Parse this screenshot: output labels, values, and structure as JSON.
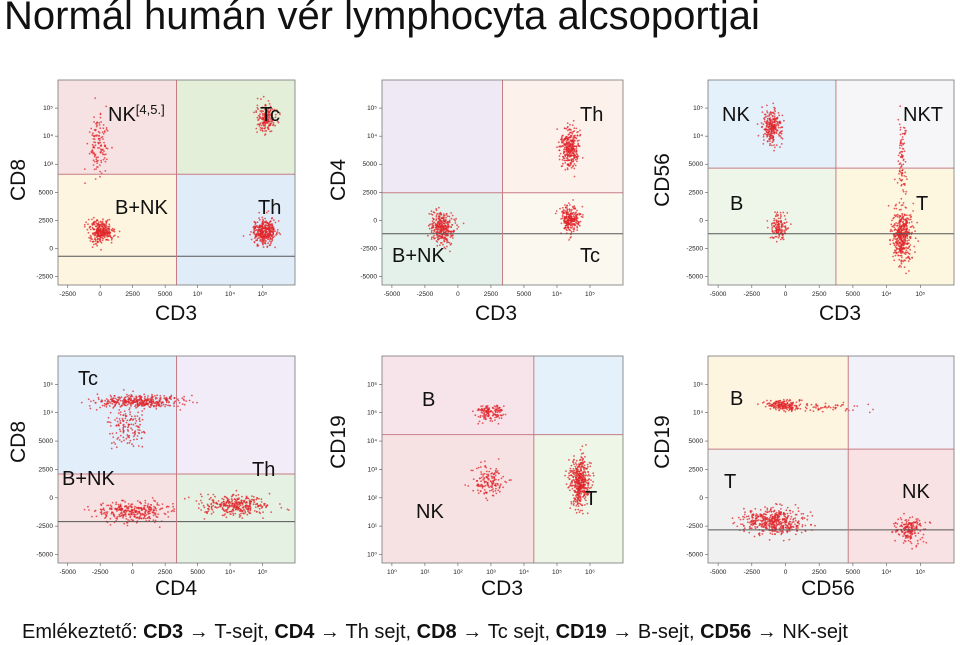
{
  "title": "Normál humán vér lymphocyta alcsoportjai",
  "footer": {
    "prefix": "Emlékeztető: ",
    "items": [
      {
        "marker": "CD3",
        "meaning": "T-sejt"
      },
      {
        "marker": "CD4",
        "meaning": "Th sejt"
      },
      {
        "marker": "CD8",
        "meaning": "Tc sejt"
      },
      {
        "marker": "CD19",
        "meaning": "B-sejt"
      },
      {
        "marker": "CD56",
        "meaning": "NK-sejt"
      }
    ]
  },
  "chart_data": [
    {
      "type": "scatter",
      "xlabel": "CD3",
      "ylabel": "CD8",
      "x_ticks": [
        "-2500",
        "0",
        "2500",
        "5000",
        "10³",
        "10⁴",
        "10⁵"
      ],
      "y_ticks": [
        "-2500",
        "0",
        "2500",
        "5000",
        "10³",
        "10⁴",
        "10⁵"
      ],
      "quadrant_colors": {
        "top_left": "#f7e2e3",
        "top_right": "#e3efd9",
        "bottom_left": "#fdf5df",
        "bottom_right": "#e0edf8"
      },
      "quadrant_labels": [
        {
          "text": "NK",
          "sup": "[4,5.]",
          "quadrant": "top_left"
        },
        {
          "text": "Tc",
          "quadrant": "top_right"
        },
        {
          "text": "B+NK",
          "quadrant": "bottom_left"
        },
        {
          "text": "Th",
          "quadrant": "bottom_right"
        }
      ],
      "populations": [
        {
          "name": "Tc",
          "x": "10⁵",
          "y": "10⁵",
          "density": "high"
        },
        {
          "name": "Th",
          "x": "10⁵",
          "y": "0",
          "density": "high"
        },
        {
          "name": "B+NK",
          "x": "0",
          "y": "0",
          "density": "high"
        },
        {
          "name": "NK",
          "x": "0",
          "y": "10⁴",
          "density": "low"
        }
      ]
    },
    {
      "type": "scatter",
      "xlabel": "CD3",
      "ylabel": "CD4",
      "x_ticks": [
        "-5000",
        "-2500",
        "0",
        "2500",
        "5000",
        "10⁴",
        "10⁵"
      ],
      "y_ticks": [
        "-5000",
        "-2500",
        "0",
        "2500",
        "5000",
        "10⁴",
        "10⁵"
      ],
      "quadrant_colors": {
        "top_left": "#efe9f6",
        "top_right": "#fdf1ec",
        "bottom_left": "#e3f1ea",
        "bottom_right": "#fbf8f0"
      },
      "quadrant_labels": [
        {
          "text": "Th",
          "quadrant": "top_right"
        },
        {
          "text": "B+NK",
          "quadrant": "bottom_left"
        },
        {
          "text": "Tc",
          "quadrant": "bottom_right"
        }
      ],
      "populations": [
        {
          "name": "Th",
          "x": "10⁵",
          "y": "10⁴",
          "density": "high"
        },
        {
          "name": "Tc",
          "x": "10⁵",
          "y": "2500",
          "density": "high"
        },
        {
          "name": "B+NK",
          "x": "0",
          "y": "0",
          "density": "high"
        }
      ]
    },
    {
      "type": "scatter",
      "xlabel": "CD3",
      "ylabel": "CD56",
      "x_ticks": [
        "-5000",
        "-2500",
        "0",
        "2500",
        "5000",
        "10⁴",
        "10⁵"
      ],
      "y_ticks": [
        "-5000",
        "-2500",
        "0",
        "2500",
        "5000",
        "10⁴",
        "10⁵"
      ],
      "quadrant_colors": {
        "top_left": "#e4f1fa",
        "top_right": "#f6f6f8",
        "bottom_left": "#eef6ea",
        "bottom_right": "#fdf7e0"
      },
      "quadrant_labels": [
        {
          "text": "NK",
          "quadrant": "top_left"
        },
        {
          "text": "NKT",
          "quadrant": "top_right"
        },
        {
          "text": "B",
          "quadrant": "bottom_left"
        },
        {
          "text": "T",
          "quadrant": "bottom_right"
        }
      ],
      "populations": [
        {
          "name": "NK",
          "x": "0",
          "y": "10⁵",
          "density": "high"
        },
        {
          "name": "B",
          "x": "0",
          "y": "0",
          "density": "medium"
        },
        {
          "name": "T",
          "x": "10⁵",
          "y": "0",
          "density": "high"
        },
        {
          "name": "NKT",
          "x": "10⁵",
          "y": "10⁴",
          "density": "low"
        }
      ]
    },
    {
      "type": "scatter",
      "xlabel": "CD4",
      "ylabel": "CD8",
      "x_ticks": [
        "-5000",
        "-2500",
        "0",
        "2500",
        "5000",
        "10⁴",
        "10⁵"
      ],
      "y_ticks": [
        "-5000",
        "-2500",
        "0",
        "2500",
        "5000",
        "10⁴",
        "10⁵"
      ],
      "quadrant_colors": {
        "top_left": "#e2eefa",
        "top_right": "#f2ecf8",
        "bottom_left": "#f7e2e3",
        "bottom_right": "#e5f1e2"
      },
      "quadrant_labels": [
        {
          "text": "Tc",
          "quadrant": "top_left"
        },
        {
          "text": "B+NK",
          "quadrant": "bottom_left"
        },
        {
          "text": "Th",
          "quadrant": "bottom_right"
        }
      ],
      "populations": [
        {
          "name": "Tc",
          "x": "0",
          "y": "10⁵",
          "density": "high"
        },
        {
          "name": "B+NK",
          "x": "0",
          "y": "0",
          "density": "high"
        },
        {
          "name": "Th",
          "x": "10⁴",
          "y": "0",
          "density": "high"
        }
      ]
    },
    {
      "type": "scatter",
      "xlabel": "CD3",
      "ylabel": "CD19",
      "x_ticks": [
        "10⁰",
        "10¹",
        "10²",
        "10³",
        "10⁴",
        "10⁵",
        "10⁶"
      ],
      "y_ticks": [
        "10⁰",
        "10¹",
        "10²",
        "10³",
        "10⁴",
        "10⁵",
        "10⁶"
      ],
      "quadrant_colors": {
        "top_left": "#f7e4ea",
        "top_right": "#e4f1fa",
        "bottom_left": "#f7e2e3",
        "bottom_right": "#eef6e7"
      },
      "quadrant_labels": [
        {
          "text": "B",
          "quadrant": "top_left"
        },
        {
          "text": "NK",
          "quadrant": "bottom_left"
        },
        {
          "text": "T",
          "quadrant": "bottom_right"
        }
      ],
      "populations": [
        {
          "name": "B",
          "x": "10²",
          "y": "10⁵",
          "density": "medium"
        },
        {
          "name": "NK",
          "x": "10²",
          "y": "10³",
          "density": "low"
        },
        {
          "name": "T",
          "x": "10⁵",
          "y": "10³",
          "density": "high"
        }
      ]
    },
    {
      "type": "scatter",
      "xlabel": "CD56",
      "ylabel": "CD19",
      "x_ticks": [
        "-5000",
        "-2500",
        "0",
        "2500",
        "5000",
        "10⁴",
        "10⁵"
      ],
      "y_ticks": [
        "-5000",
        "-2500",
        "0",
        "2500",
        "5000",
        "10⁴",
        "10⁵"
      ],
      "quadrant_colors": {
        "top_left": "#fdf5df",
        "top_right": "#f1f1fa",
        "bottom_left": "#f0f0f0",
        "bottom_right": "#f9e2e4"
      },
      "quadrant_labels": [
        {
          "text": "B",
          "quadrant": "top_left"
        },
        {
          "text": "T",
          "quadrant": "bottom_left"
        },
        {
          "text": "NK",
          "quadrant": "bottom_right"
        }
      ],
      "populations": [
        {
          "name": "B",
          "x": "0",
          "y": "10⁵",
          "density": "medium"
        },
        {
          "name": "T",
          "x": "0",
          "y": "0",
          "density": "high"
        },
        {
          "name": "NK",
          "x": "10⁵",
          "y": "0",
          "density": "medium"
        }
      ]
    }
  ]
}
